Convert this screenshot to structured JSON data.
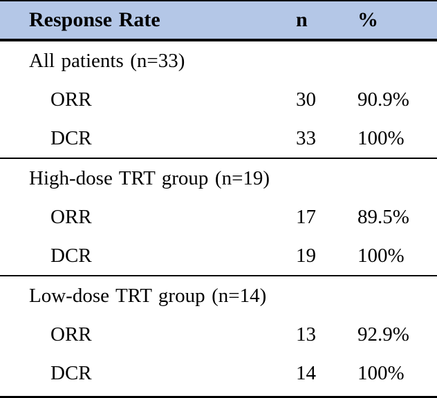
{
  "table": {
    "style": {
      "header_bg": "#b4c7e7",
      "rule_color": "#000000",
      "text_color": "#000000"
    },
    "header": {
      "col1": "Response Rate",
      "col2": "n",
      "col3": "%"
    },
    "sections": [
      {
        "group_label": "All patients (n=33)",
        "rows": [
          {
            "label": "ORR",
            "n": "30",
            "pct": "90.9%"
          },
          {
            "label": "DCR",
            "n": "33",
            "pct": "100%"
          }
        ]
      },
      {
        "group_label": "High-dose TRT group (n=19)",
        "rows": [
          {
            "label": "ORR",
            "n": "17",
            "pct": "89.5%"
          },
          {
            "label": "DCR",
            "n": "19",
            "pct": "100%"
          }
        ]
      },
      {
        "group_label": "Low-dose TRT group (n=14)",
        "rows": [
          {
            "label": "ORR",
            "n": "13",
            "pct": "92.9%"
          },
          {
            "label": "DCR",
            "n": "14",
            "pct": "100%"
          }
        ]
      }
    ]
  },
  "chart_data": {
    "type": "table",
    "title": "Response Rate",
    "columns": [
      "Response Rate",
      "n",
      "%"
    ],
    "rows": [
      [
        "All patients (n=33)",
        "",
        ""
      ],
      [
        "ORR",
        "30",
        "90.9%"
      ],
      [
        "DCR",
        "33",
        "100%"
      ],
      [
        "High-dose TRT group (n=19)",
        "",
        ""
      ],
      [
        "ORR",
        "17",
        "89.5%"
      ],
      [
        "DCR",
        "19",
        "100%"
      ],
      [
        "Low-dose TRT group (n=14)",
        "",
        ""
      ],
      [
        "ORR",
        "13",
        "92.9%"
      ],
      [
        "DCR",
        "14",
        "100%"
      ]
    ]
  }
}
